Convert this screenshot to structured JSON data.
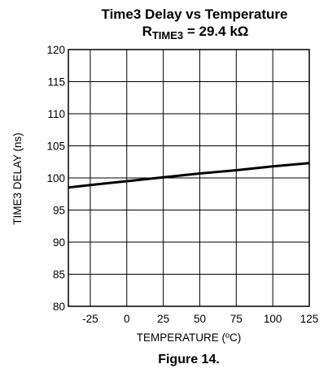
{
  "chart_data": {
    "type": "line",
    "title": "Time3 Delay vs Temperature",
    "subtitle_prefix": "R",
    "subtitle_subscript": "TIME3",
    "subtitle_suffix": " = 29.4 kΩ",
    "xlabel": "TEMPERATURE (ºC)",
    "ylabel": "TIME3 DELAY (ns)",
    "caption": "Figure 14.",
    "xlim": [
      -40,
      125
    ],
    "ylim": [
      80,
      120
    ],
    "x_ticks": [
      -25,
      0,
      25,
      50,
      75,
      100,
      125
    ],
    "y_ticks": [
      80,
      85,
      90,
      95,
      100,
      105,
      110,
      115,
      120
    ],
    "x_grid": [
      -25,
      0,
      25,
      50,
      75,
      100
    ],
    "y_grid": [
      85,
      90,
      95,
      100,
      105,
      110,
      115
    ],
    "grid": true,
    "line_color": "#000000",
    "series": [
      {
        "x": [
          -40,
          -25,
          0,
          25,
          50,
          75,
          100,
          125
        ],
        "values": [
          98.5,
          98.9,
          99.5,
          100.1,
          100.7,
          101.2,
          101.8,
          102.3
        ]
      }
    ]
  }
}
